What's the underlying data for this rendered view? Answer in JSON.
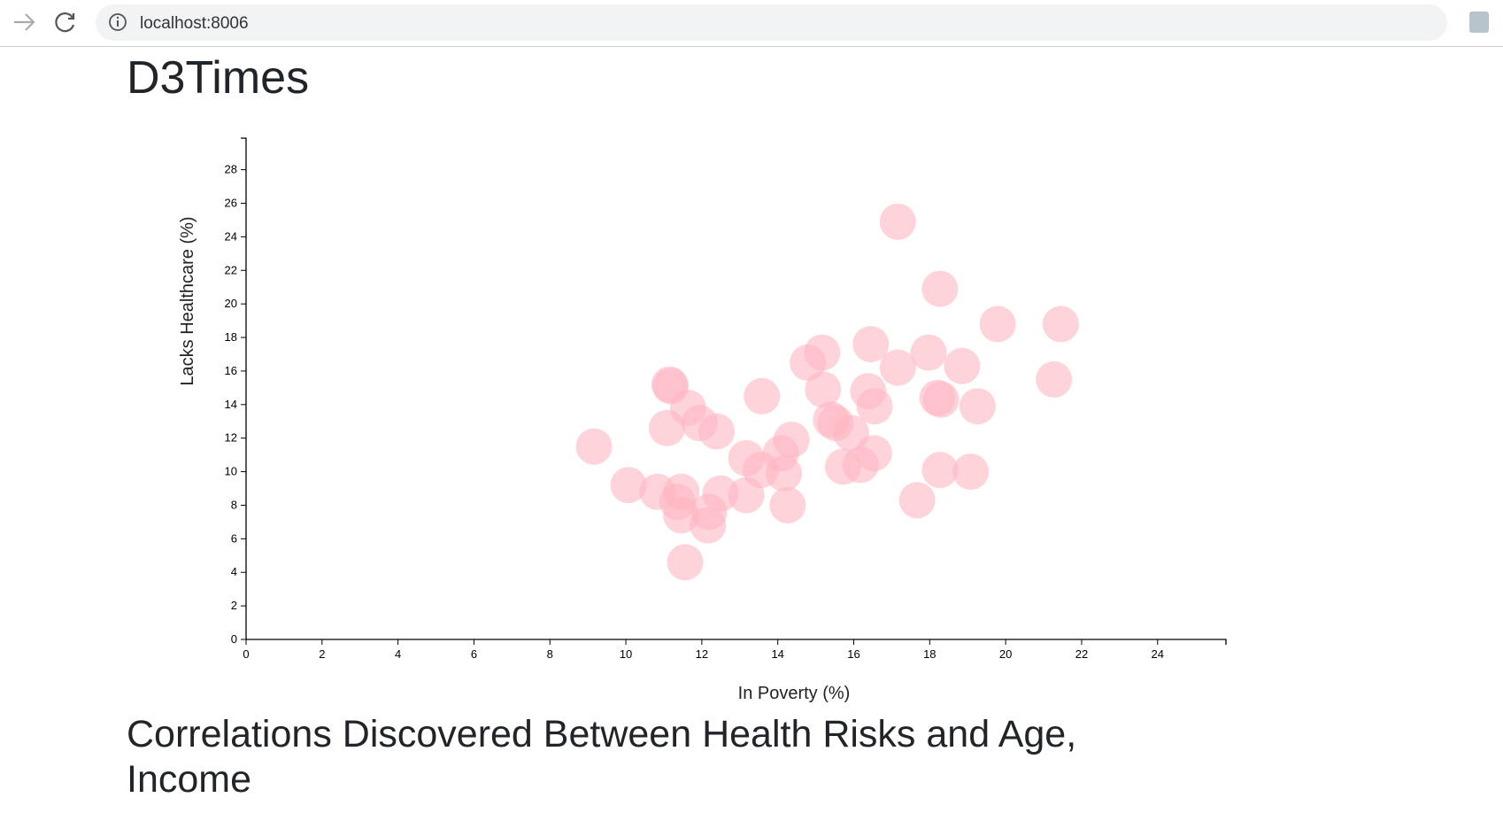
{
  "browser": {
    "url": "localhost:8006"
  },
  "page": {
    "title": "D3Times",
    "heading": "Correlations Discovered Between Health Risks and Age, Income"
  },
  "chart_data": {
    "type": "scatter",
    "x_label": "In Poverty (%)",
    "y_label": "Lacks Healthcare (%)",
    "color": "#ffb6c1",
    "xlim": [
      0,
      25.8
    ],
    "ylim": [
      0,
      29.88
    ],
    "xticks": [
      0,
      2,
      4,
      6,
      8,
      10,
      12,
      14,
      16,
      18,
      20,
      22,
      24
    ],
    "yticks": [
      0,
      2,
      4,
      6,
      8,
      10,
      12,
      14,
      16,
      18,
      20,
      22,
      24,
      26,
      28
    ],
    "x": [
      17.16,
      18.27,
      19.79,
      21.45,
      21.27,
      16.45,
      17.97,
      15.17,
      14.79,
      17.16,
      18.85,
      15.19,
      16.38,
      16.55,
      18.2,
      18.3,
      19.26,
      13.58,
      11.15,
      11.18,
      11.64,
      11.94,
      12.39,
      11.08,
      15.4,
      15.52,
      15.93,
      14.36,
      9.16,
      14.08,
      13.17,
      16.53,
      13.55,
      14.16,
      15.72,
      16.18,
      18.27,
      19.08,
      10.07,
      10.83,
      11.46,
      12.49,
      13.17,
      11.36,
      12.19,
      11.46,
      14.26,
      17.67,
      12.16,
      11.56
    ],
    "y": [
      24.9,
      20.9,
      18.8,
      18.8,
      15.5,
      17.6,
      17.1,
      17.1,
      16.5,
      16.2,
      16.3,
      14.9,
      14.8,
      13.9,
      14.4,
      14.3,
      13.9,
      14.5,
      15.2,
      15.1,
      13.8,
      12.9,
      12.4,
      12.6,
      13.1,
      12.9,
      12.3,
      11.9,
      11.5,
      11.1,
      10.8,
      11.1,
      10.1,
      9.9,
      10.3,
      10.4,
      10.1,
      10.0,
      9.2,
      8.8,
      8.8,
      8.7,
      8.6,
      8.2,
      7.6,
      7.4,
      8.0,
      8.3,
      6.8,
      4.6
    ]
  }
}
